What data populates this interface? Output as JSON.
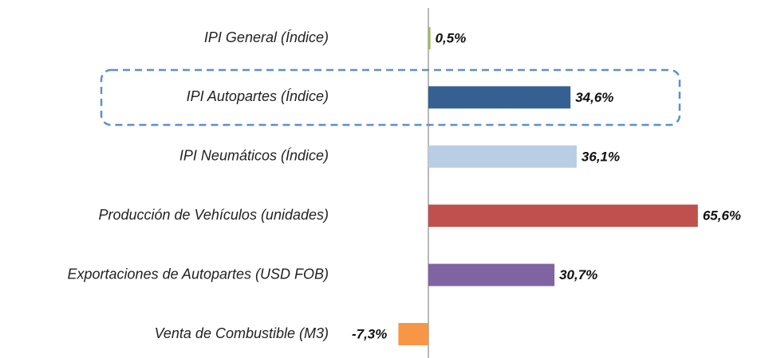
{
  "chart_data": {
    "type": "hbar",
    "categories": [
      "IPI General (Índice)",
      "IPI Autopartes (Índice)",
      "IPI Neumáticos (Índice)",
      "Producción de Vehículos (unidades)",
      "Exportaciones de Autopartes (USD FOB)",
      "Venta de Combustible (M3)"
    ],
    "values": [
      0.5,
      34.6,
      36.1,
      65.6,
      30.7,
      -7.3
    ],
    "value_labels": [
      "0,5%",
      "34,6%",
      "36,1%",
      "65,6%",
      "30,7%",
      "-7,3%"
    ],
    "colors": [
      "#9bbb59",
      "#366092",
      "#b9cde5",
      "#c0504d",
      "#8064a2",
      "#f79646"
    ]
  }
}
